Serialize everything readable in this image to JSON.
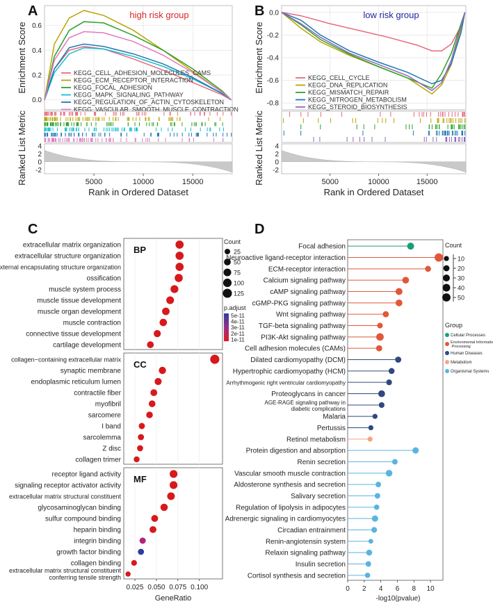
{
  "panels": {
    "A": "A",
    "B": "B",
    "C": "C",
    "D": "D"
  },
  "chart_data": [
    {
      "panel": "A",
      "type": "line",
      "title": "high risk group",
      "title_color": "#d62728",
      "ylabel_top": "Enrichment Score",
      "ylabel_bottom": "Ranked List Metric",
      "xlabel": "Rank in Ordered Dataset",
      "xticks": [
        5000,
        10000,
        15000
      ],
      "xlim": [
        0,
        19000
      ],
      "yticks_top": [
        0.0,
        0.2,
        0.4,
        0.6
      ],
      "ylim_top": [
        -0.08,
        0.76
      ],
      "yticks_bottom": [
        -2,
        0,
        2,
        4
      ],
      "ylim_bottom": [
        -3,
        4.5
      ],
      "metric_range": [
        3.0,
        -2.8
      ],
      "series": [
        {
          "name": "KEGG_CELL_ADHESION_MOLECULES_CAMS",
          "color": "#e8697d",
          "x": [
            0,
            1000,
            2500,
            4000,
            6000,
            9000,
            12000,
            15000,
            18000,
            18900
          ],
          "y": [
            0,
            0.25,
            0.4,
            0.43,
            0.41,
            0.33,
            0.24,
            0.14,
            0.04,
            0
          ]
        },
        {
          "name": "KEGG_ECM_RECEPTOR_INTERACTION",
          "color": "#b8a500",
          "x": [
            0,
            1000,
            2500,
            4000,
            6000,
            9000,
            12000,
            15000,
            18000,
            18900
          ],
          "y": [
            0,
            0.45,
            0.66,
            0.72,
            0.68,
            0.56,
            0.4,
            0.23,
            0.06,
            0
          ]
        },
        {
          "name": "KEGG_FOCAL_ADHESION",
          "color": "#2ca02c",
          "x": [
            0,
            1000,
            2500,
            4000,
            6000,
            9000,
            12000,
            15000,
            18000,
            18900
          ],
          "y": [
            0,
            0.35,
            0.56,
            0.63,
            0.62,
            0.52,
            0.4,
            0.25,
            0.07,
            0
          ]
        },
        {
          "name": "KEGG_MAPK_SIGNALING_PATHWAY",
          "color": "#17becf",
          "x": [
            0,
            1000,
            2500,
            4000,
            6000,
            9000,
            12000,
            15000,
            18000,
            18900
          ],
          "y": [
            0,
            0.22,
            0.37,
            0.42,
            0.41,
            0.35,
            0.27,
            0.17,
            0.05,
            0
          ]
        },
        {
          "name": "KEGG_REGULATION_OF_ACTIN_CYTOSKELETON",
          "color": "#1f77b4",
          "x": [
            0,
            1000,
            2500,
            4000,
            6000,
            9000,
            12000,
            15000,
            18000,
            18900
          ],
          "y": [
            0,
            0.25,
            0.42,
            0.45,
            0.43,
            0.37,
            0.29,
            0.18,
            0.05,
            0
          ]
        },
        {
          "name": "KEGG_VASCULAR_SMOOTH_MUSCLE_CONTRACTION",
          "color": "#e377c2",
          "x": [
            0,
            1000,
            2500,
            4000,
            6000,
            9000,
            12000,
            15000,
            18000,
            18900
          ],
          "y": [
            0,
            0.32,
            0.5,
            0.55,
            0.54,
            0.47,
            0.36,
            0.22,
            0.06,
            0
          ]
        }
      ]
    },
    {
      "panel": "B",
      "type": "line",
      "title": "low risk group",
      "title_color": "#1f1fa0",
      "ylabel_top": "Enrichment Score",
      "ylabel_bottom": "Ranked List Metric",
      "xlabel": "Rank in Ordered Dataset",
      "xticks": [
        5000,
        10000,
        15000
      ],
      "xlim": [
        0,
        19000
      ],
      "yticks_top": [
        -0.8,
        -0.6,
        -0.4,
        -0.2,
        0.0
      ],
      "ylim_top": [
        -0.86,
        0.06
      ],
      "yticks_bottom": [
        -2,
        0,
        2,
        4
      ],
      "ylim_bottom": [
        -3,
        4.5
      ],
      "metric_range": [
        3.0,
        -2.8
      ],
      "series": [
        {
          "name": "KEGG_CELL_CYCLE",
          "color": "#e8697d",
          "x": [
            0,
            2000,
            5000,
            8000,
            11000,
            14000,
            15500,
            16500,
            17500,
            18500,
            18900
          ],
          "y": [
            0,
            -0.03,
            -0.1,
            -0.16,
            -0.22,
            -0.29,
            -0.34,
            -0.34,
            -0.28,
            -0.12,
            0
          ]
        },
        {
          "name": "KEGG_DNA_REPLICATION",
          "color": "#b8a500",
          "x": [
            0,
            2000,
            4000,
            7000,
            10000,
            13000,
            15500,
            16500,
            17500,
            18500,
            18900
          ],
          "y": [
            0,
            -0.14,
            -0.26,
            -0.38,
            -0.48,
            -0.58,
            -0.72,
            -0.64,
            -0.46,
            -0.14,
            0
          ]
        },
        {
          "name": "KEGG_MISMATCH_REPAIR",
          "color": "#2ca02c",
          "x": [
            0,
            2000,
            4000,
            7000,
            10000,
            13000,
            15500,
            16500,
            17500,
            18500,
            18900
          ],
          "y": [
            0,
            -0.11,
            -0.24,
            -0.37,
            -0.48,
            -0.58,
            -0.67,
            -0.54,
            -0.36,
            -0.1,
            0
          ]
        },
        {
          "name": "KEGG_NITROGEN_METABOLISM",
          "color": "#1f77b4",
          "x": [
            0,
            2000,
            4000,
            7000,
            10000,
            13000,
            15500,
            16500,
            17500,
            18500,
            18900
          ],
          "y": [
            0,
            -0.07,
            -0.2,
            -0.34,
            -0.44,
            -0.53,
            -0.63,
            -0.6,
            -0.45,
            -0.18,
            0
          ]
        },
        {
          "name": "KEGG_STEROID_BIOSYNTHESIS",
          "color": "#9467bd",
          "x": [
            0,
            2000,
            4000,
            7000,
            10000,
            13000,
            15500,
            16500,
            17500,
            18500,
            18900
          ],
          "y": [
            0,
            -0.1,
            -0.22,
            -0.36,
            -0.46,
            -0.56,
            -0.69,
            -0.62,
            -0.42,
            -0.12,
            0
          ]
        }
      ]
    },
    {
      "panel": "C",
      "type": "scatter",
      "xlabel": "GeneRatio",
      "xticks": [
        0.025,
        0.05,
        0.075,
        0.1
      ],
      "xtick_labels": [
        "0.025",
        "0.050",
        "0.075",
        "0.100"
      ],
      "xlim": [
        0.012,
        0.127
      ],
      "legend": {
        "size_title": "Count",
        "size_values": [
          25,
          50,
          75,
          100,
          125
        ],
        "color_title": "p.adjust",
        "color_values": [
          "5e-11",
          "4e-11",
          "3e-11",
          "2e-11",
          "1e-11"
        ]
      },
      "groups": [
        {
          "name": "BP",
          "terms": [
            {
              "term": "extracellular matrix organization",
              "ratio": 0.077,
              "count": 90,
              "padj": 1e-13
            },
            {
              "term": "extracellular structure organization",
              "ratio": 0.077,
              "count": 90,
              "padj": 1e-13
            },
            {
              "term": "external encapsulating structure organization",
              "ratio": 0.077,
              "count": 90,
              "padj": 1e-13
            },
            {
              "term": "ossification",
              "ratio": 0.076,
              "count": 88,
              "padj": 1e-13
            },
            {
              "term": "muscle system process",
              "ratio": 0.071,
              "count": 82,
              "padj": 1e-13
            },
            {
              "term": "muscle tissue development",
              "ratio": 0.066,
              "count": 76,
              "padj": 1e-13
            },
            {
              "term": "muscle organ development",
              "ratio": 0.061,
              "count": 70,
              "padj": 1e-13
            },
            {
              "term": "muscle contraction",
              "ratio": 0.058,
              "count": 67,
              "padj": 1e-13
            },
            {
              "term": "connective tissue development",
              "ratio": 0.051,
              "count": 59,
              "padj": 1e-13
            },
            {
              "term": "cartilage development",
              "ratio": 0.043,
              "count": 50,
              "padj": 1e-13
            }
          ]
        },
        {
          "name": "CC",
          "terms": [
            {
              "term": "collagen−containing extracellular matrix",
              "ratio": 0.118,
              "count": 128,
              "padj": 1e-13
            },
            {
              "term": "synaptic membrane",
              "ratio": 0.057,
              "count": 62,
              "padj": 1e-13
            },
            {
              "term": "endoplasmic reticulum lumen",
              "ratio": 0.052,
              "count": 57,
              "padj": 1e-13
            },
            {
              "term": "contractile fiber",
              "ratio": 0.047,
              "count": 51,
              "padj": 1e-13
            },
            {
              "term": "myofibril",
              "ratio": 0.045,
              "count": 49,
              "padj": 1e-13
            },
            {
              "term": "sarcomere",
              "ratio": 0.042,
              "count": 46,
              "padj": 1e-13
            },
            {
              "term": "I band",
              "ratio": 0.033,
              "count": 36,
              "padj": 1e-13
            },
            {
              "term": "sarcolemma",
              "ratio": 0.032,
              "count": 35,
              "padj": 1e-13
            },
            {
              "term": "Z disc",
              "ratio": 0.031,
              "count": 34,
              "padj": 1e-13
            },
            {
              "term": "collagen trimer",
              "ratio": 0.027,
              "count": 30,
              "padj": 1e-13
            }
          ]
        },
        {
          "name": "MF",
          "terms": [
            {
              "term": "receptor ligand activity",
              "ratio": 0.07,
              "count": 78,
              "padj": 1e-13
            },
            {
              "term": "signaling receptor activator activity",
              "ratio": 0.07,
              "count": 78,
              "padj": 1e-13
            },
            {
              "term": "extracellular matrix structural constituent",
              "ratio": 0.067,
              "count": 74,
              "padj": 1e-13
            },
            {
              "term": "glycosaminoglycan binding",
              "ratio": 0.059,
              "count": 65,
              "padj": 1e-13
            },
            {
              "term": "sulfur compound binding",
              "ratio": 0.048,
              "count": 53,
              "padj": 1e-13
            },
            {
              "term": "heparin binding",
              "ratio": 0.046,
              "count": 51,
              "padj": 1e-13
            },
            {
              "term": "integrin binding",
              "ratio": 0.034,
              "count": 38,
              "padj": 3e-11
            },
            {
              "term": "growth factor binding",
              "ratio": 0.032,
              "count": 35,
              "padj": 5e-11
            },
            {
              "term": "collagen binding",
              "ratio": 0.024,
              "count": 27,
              "padj": 1e-13
            },
            {
              "term": "extracellular matrix structural constituent\nconferring tensile strength",
              "ratio": 0.017,
              "count": 19,
              "padj": 1e-13
            }
          ]
        }
      ]
    },
    {
      "panel": "D",
      "type": "scatter",
      "xlabel": "-log10(pvalue)",
      "xticks": [
        0,
        2,
        4,
        6,
        8,
        10
      ],
      "xlim": [
        0,
        11.5
      ],
      "legend": {
        "size_title": "Count",
        "size_values": [
          10,
          20,
          30,
          40,
          50
        ],
        "color_title": "Group",
        "groups": [
          {
            "name": "Cellular Processes",
            "color": "#1b9e77"
          },
          {
            "name": "Environmental Information Processing",
            "color": "#e0583a"
          },
          {
            "name": "Human Diseases",
            "color": "#2e4a7d"
          },
          {
            "name": "Metabolism",
            "color": "#f4a582"
          },
          {
            "name": "Organismal Systems",
            "color": "#5ab4e0"
          }
        ]
      },
      "pathways": [
        {
          "name": "Focal adhesion",
          "value": 7.6,
          "count": 30,
          "group": "Cellular Processes"
        },
        {
          "name": "Neuroactive ligand-receptor interaction",
          "value": 11.0,
          "count": 52,
          "group": "Environmental Information Processing"
        },
        {
          "name": "ECM-receptor interaction",
          "value": 9.7,
          "count": 18,
          "group": "Environmental Information Processing"
        },
        {
          "name": "Calcium signaling pathway",
          "value": 7.0,
          "count": 27,
          "group": "Environmental Information Processing"
        },
        {
          "name": "cAMP signaling pathway",
          "value": 6.2,
          "count": 30,
          "group": "Environmental Information Processing"
        },
        {
          "name": "cGMP-PKG signaling pathway",
          "value": 6.2,
          "count": 28,
          "group": "Environmental Information Processing"
        },
        {
          "name": "Wnt signaling pathway",
          "value": 4.6,
          "count": 20,
          "group": "Environmental Information Processing"
        },
        {
          "name": "TGF-beta signaling pathway",
          "value": 3.9,
          "count": 15,
          "group": "Environmental Information Processing"
        },
        {
          "name": "PI3K-Akt signaling pathway",
          "value": 3.9,
          "count": 38,
          "group": "Environmental Information Processing"
        },
        {
          "name": "Cell adhesion molecules (CAMs)",
          "value": 3.8,
          "count": 20,
          "group": "Environmental Information Processing"
        },
        {
          "name": "Dilated cardiomyopathy (DCM)",
          "value": 6.1,
          "count": 20,
          "group": "Human Diseases"
        },
        {
          "name": "Hypertrophic cardiomyopathy (HCM)",
          "value": 5.3,
          "count": 18,
          "group": "Human Diseases"
        },
        {
          "name": "Arrhythmogenic right ventricular cardiomyopathy",
          "value": 5.0,
          "count": 16,
          "group": "Human Diseases"
        },
        {
          "name": "Proteoglycans in cancer",
          "value": 4.1,
          "count": 28,
          "group": "Human Diseases"
        },
        {
          "name": "AGE-RAGE signaling pathway in\ndiabetic complications",
          "value": 4.1,
          "count": 16,
          "group": "Human Diseases"
        },
        {
          "name": "Malaria",
          "value": 3.3,
          "count": 10,
          "group": "Human Diseases"
        },
        {
          "name": "Pertussis",
          "value": 2.8,
          "count": 10,
          "group": "Human Diseases"
        },
        {
          "name": "Retinol metabolism",
          "value": 2.7,
          "count": 10,
          "group": "Metabolism"
        },
        {
          "name": "Protein digestion and absorption",
          "value": 8.2,
          "count": 22,
          "group": "Organismal Systems"
        },
        {
          "name": "Renin secretion",
          "value": 5.7,
          "count": 14,
          "group": "Organismal Systems"
        },
        {
          "name": "Vascular smooth muscle contraction",
          "value": 5.0,
          "count": 26,
          "group": "Organismal Systems"
        },
        {
          "name": "Aldosterone synthesis and secretion",
          "value": 3.7,
          "count": 14,
          "group": "Organismal Systems"
        },
        {
          "name": "Salivary secretion",
          "value": 3.6,
          "count": 14,
          "group": "Organismal Systems"
        },
        {
          "name": "Regulation of lipolysis in adipocytes",
          "value": 3.5,
          "count": 12,
          "group": "Organismal Systems"
        },
        {
          "name": "Adrenergic signaling in cardiomyocytes",
          "value": 3.3,
          "count": 22,
          "group": "Organismal Systems"
        },
        {
          "name": "Circadian entrainment",
          "value": 3.2,
          "count": 16,
          "group": "Organismal Systems"
        },
        {
          "name": "Renin-angiotensin system",
          "value": 2.8,
          "count": 8,
          "group": "Organismal Systems"
        },
        {
          "name": "Relaxin signaling pathway",
          "value": 2.6,
          "count": 18,
          "group": "Organismal Systems"
        },
        {
          "name": "Insulin secretion",
          "value": 2.5,
          "count": 14,
          "group": "Organismal Systems"
        },
        {
          "name": "Cortisol synthesis and secretion",
          "value": 2.4,
          "count": 12,
          "group": "Organismal Systems"
        }
      ]
    }
  ]
}
